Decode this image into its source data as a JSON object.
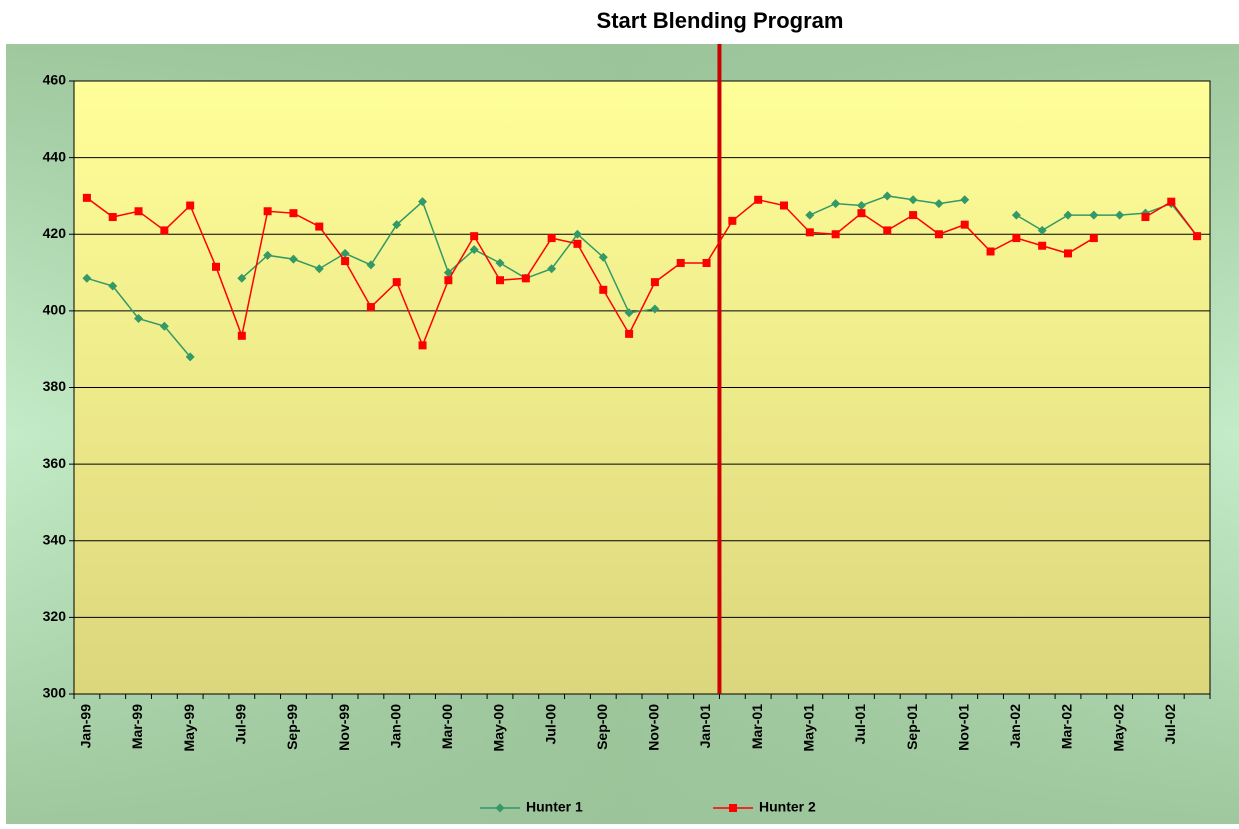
{
  "chart_data": {
    "type": "line",
    "annotation": "Start Blending Program",
    "categories": [
      "Jan-99",
      null,
      "Mar-99",
      null,
      "May-99",
      null,
      "Jul-99",
      null,
      "Sep-99",
      null,
      "Nov-99",
      null,
      "Jan-00",
      null,
      "Mar-00",
      null,
      "May-00",
      null,
      "Jul-00",
      null,
      "Sep-00",
      null,
      "Nov-00",
      null,
      "Jan-01",
      null,
      "Mar-01",
      null,
      "May-01",
      null,
      "Jul-01",
      null,
      "Sep-01",
      null,
      "Nov-01",
      null,
      "Jan-02",
      null,
      "Mar-02",
      null,
      "May-02",
      null,
      "Jul-02",
      null
    ],
    "series": [
      {
        "name": "Hunter 1",
        "color": "#339966",
        "marker": "diamond",
        "values": [
          408.5,
          406.5,
          398,
          396,
          388,
          null,
          408.5,
          414.5,
          413.5,
          411,
          415,
          412,
          422.5,
          428.5,
          410,
          416,
          412.5,
          408.5,
          411,
          420,
          414,
          399.5,
          400.5,
          null,
          null,
          null,
          null,
          null,
          425,
          428,
          427.5,
          430,
          429,
          428,
          429,
          null,
          425,
          421,
          425,
          425,
          425,
          425.5,
          428,
          419.5
        ]
      },
      {
        "name": "Hunter 2",
        "color": "#ff0000",
        "marker": "square",
        "values": [
          429.5,
          424.5,
          426,
          421,
          427.5,
          411.5,
          393.5,
          426,
          425.5,
          422,
          413,
          401,
          407.5,
          391,
          408,
          419.5,
          408,
          408.5,
          419,
          417.5,
          405.5,
          394,
          407.5,
          412.5,
          412.5,
          423.5,
          429,
          427.5,
          420.5,
          420,
          425.5,
          421,
          425,
          420,
          422.5,
          415.5,
          419,
          417,
          415,
          419,
          null,
          424.5,
          428.5,
          419.5
        ]
      }
    ],
    "ylim": [
      300,
      460
    ],
    "yticks": [
      300,
      320,
      340,
      360,
      380,
      400,
      420,
      440,
      460
    ],
    "grid": true,
    "legend": "bottom"
  }
}
